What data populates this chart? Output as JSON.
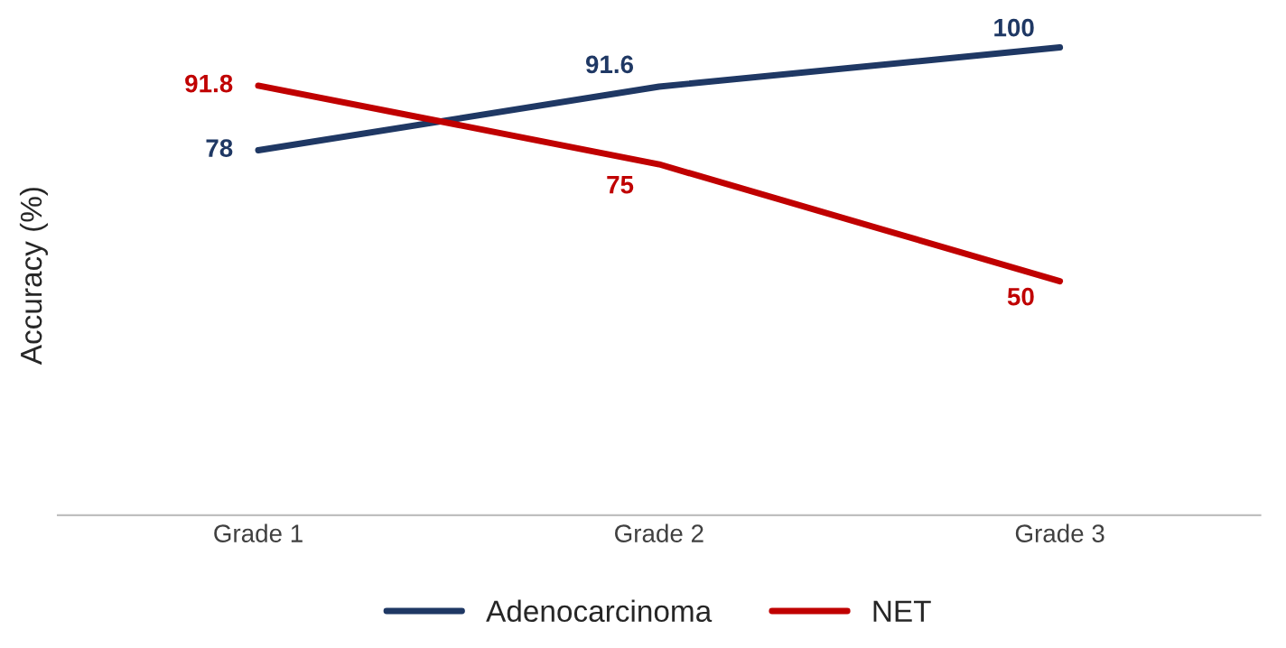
{
  "chart_data": {
    "type": "line",
    "ylabel": "Accuracy (%)",
    "categories": [
      "Grade 1",
      "Grade 2",
      "Grade 3"
    ],
    "series": [
      {
        "name": "Adenocarcinoma",
        "color": "#1f3864",
        "values": [
          78,
          91.6,
          100
        ]
      },
      {
        "name": "NET",
        "color": "#c00000",
        "values": [
          91.8,
          75,
          50
        ]
      }
    ],
    "tick_labels": "x",
    "data_labels": true,
    "legend": "bottom",
    "grid": false,
    "marker": "none",
    "line_style": "solid"
  }
}
